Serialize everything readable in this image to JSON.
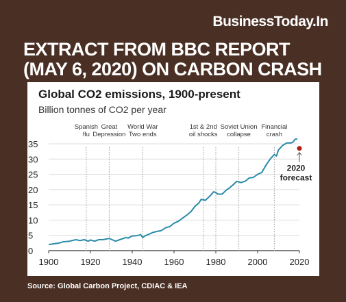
{
  "brand": "BusinessToday.In",
  "headline": [
    "EXTRACT FROM BBC REPORT",
    "(MAY 6, 2020) ON CARBON CRASH"
  ],
  "source": "Source: Global Carbon Project, CDIAC & IEA",
  "colors": {
    "background": "#4a2f24",
    "line": "#2a8aa8",
    "forecast": "#b01e14",
    "grid": "#dddddd",
    "annotation_line": "#999999"
  },
  "chart_data": {
    "type": "line",
    "title": "Global CO2 emissions, 1900-present",
    "subtitle": "Billion tonnes of CO2 per year",
    "xlim": [
      1900,
      2020
    ],
    "ylim": [
      0,
      35
    ],
    "x_ticks": [
      1900,
      1920,
      1940,
      1960,
      1980,
      2000,
      2020
    ],
    "y_ticks": [
      0,
      5,
      10,
      15,
      20,
      25,
      30,
      35
    ],
    "grid": true,
    "series": [
      {
        "values": [
          [
            1900,
            2.0
          ],
          [
            1902,
            2.2
          ],
          [
            1905,
            2.5
          ],
          [
            1907,
            2.9
          ],
          [
            1910,
            3.1
          ],
          [
            1913,
            3.6
          ],
          [
            1915,
            3.3
          ],
          [
            1917,
            3.6
          ],
          [
            1919,
            3.1
          ],
          [
            1920,
            3.5
          ],
          [
            1922,
            3.1
          ],
          [
            1924,
            3.6
          ],
          [
            1926,
            3.6
          ],
          [
            1929,
            4.0
          ],
          [
            1930,
            3.7
          ],
          [
            1932,
            3.1
          ],
          [
            1934,
            3.6
          ],
          [
            1937,
            4.3
          ],
          [
            1938,
            4.1
          ],
          [
            1940,
            4.8
          ],
          [
            1942,
            4.9
          ],
          [
            1944,
            5.2
          ],
          [
            1945,
            4.3
          ],
          [
            1946,
            4.8
          ],
          [
            1948,
            5.4
          ],
          [
            1950,
            6.0
          ],
          [
            1952,
            6.3
          ],
          [
            1954,
            6.6
          ],
          [
            1956,
            7.5
          ],
          [
            1958,
            7.9
          ],
          [
            1960,
            9.0
          ],
          [
            1962,
            9.6
          ],
          [
            1964,
            10.6
          ],
          [
            1966,
            11.6
          ],
          [
            1968,
            12.7
          ],
          [
            1970,
            14.5
          ],
          [
            1972,
            15.7
          ],
          [
            1973,
            16.8
          ],
          [
            1975,
            16.5
          ],
          [
            1977,
            17.8
          ],
          [
            1979,
            19.3
          ],
          [
            1980,
            19.0
          ],
          [
            1981,
            18.5
          ],
          [
            1983,
            18.5
          ],
          [
            1985,
            19.8
          ],
          [
            1987,
            20.8
          ],
          [
            1989,
            22.0
          ],
          [
            1990,
            22.7
          ],
          [
            1992,
            22.3
          ],
          [
            1994,
            22.7
          ],
          [
            1996,
            23.8
          ],
          [
            1998,
            24.0
          ],
          [
            2000,
            25.0
          ],
          [
            2002,
            25.6
          ],
          [
            2004,
            28.0
          ],
          [
            2006,
            30.0
          ],
          [
            2008,
            31.5
          ],
          [
            2009,
            31.0
          ],
          [
            2010,
            33.0
          ],
          [
            2012,
            34.5
          ],
          [
            2014,
            35.3
          ],
          [
            2016,
            35.3
          ],
          [
            2017,
            35.6
          ],
          [
            2018,
            36.5
          ],
          [
            2019,
            36.6
          ]
        ]
      }
    ],
    "forecast": {
      "x": 2020,
      "y": 33.5,
      "label": [
        "2020",
        "forecast"
      ]
    },
    "annotations": [
      {
        "x": 1918,
        "label": [
          "Spanish",
          "flu"
        ]
      },
      {
        "x": 1929,
        "label": [
          "Great",
          "Depression"
        ]
      },
      {
        "x": 1945,
        "label": [
          "World War",
          "Two ends"
        ]
      },
      {
        "x": 1974,
        "label": [
          "1st & 2nd",
          "oil shocks"
        ]
      },
      {
        "x": 1980,
        "label": []
      },
      {
        "x": 1991,
        "label": [
          "Soviet Union",
          "collapse"
        ]
      },
      {
        "x": 2008,
        "label": [
          "Financial",
          "crash"
        ]
      }
    ]
  }
}
